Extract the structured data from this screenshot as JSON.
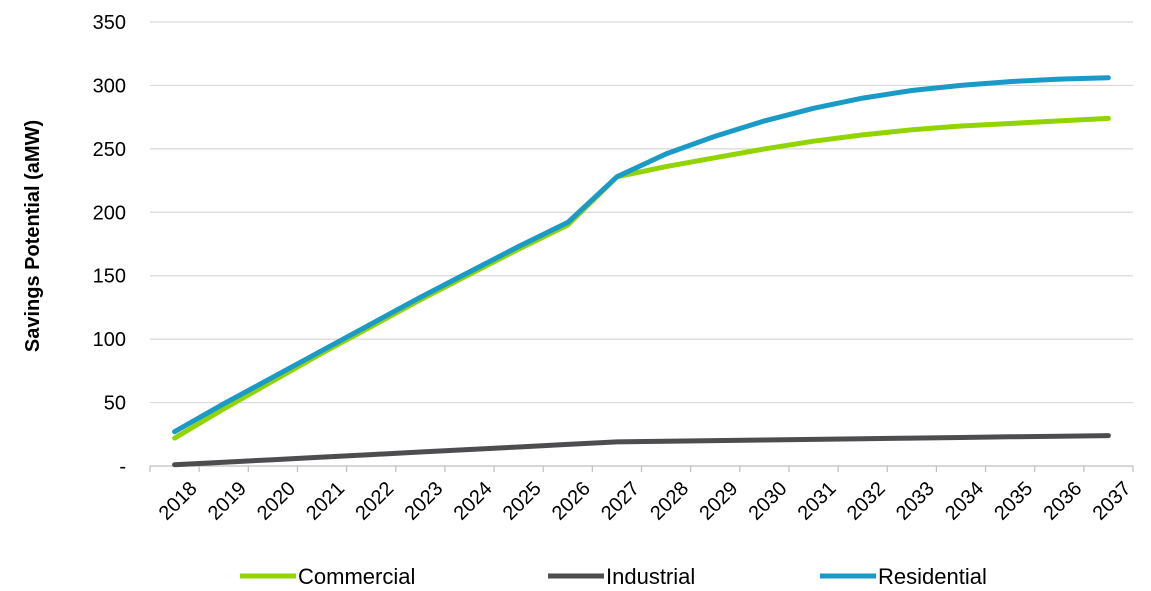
{
  "chart_data": {
    "type": "line",
    "title": "",
    "xlabel": "",
    "ylabel": "Savings Potential (aMW)",
    "x": [
      "2018",
      "2019",
      "2020",
      "2021",
      "2022",
      "2023",
      "2024",
      "2025",
      "2026",
      "2027",
      "2028",
      "2029",
      "2030",
      "2031",
      "2032",
      "2033",
      "2034",
      "2035",
      "2036",
      "2037"
    ],
    "ylim": [
      0,
      350
    ],
    "yticks": [
      0,
      50,
      100,
      150,
      200,
      250,
      300,
      350
    ],
    "ytick_labels": [
      "-",
      "50",
      "100",
      "150",
      "200",
      "250",
      "300",
      "350"
    ],
    "grid": true,
    "legend": "bottom",
    "series": [
      {
        "name": "Commercial",
        "color": "#92d400",
        "values": [
          22,
          45,
          67,
          89,
          110,
          131,
          151,
          171,
          190,
          228,
          236,
          243,
          250,
          256,
          261,
          265,
          268,
          270,
          272,
          274
        ]
      },
      {
        "name": "Industrial",
        "color": "#4d4d4f",
        "values": [
          1,
          3,
          5,
          7,
          9,
          11,
          13,
          15,
          17,
          19,
          19.5,
          20,
          20.5,
          21,
          21.5,
          22,
          22.5,
          23,
          23.5,
          24
        ]
      },
      {
        "name": "Residential",
        "color": "#1a9bc7",
        "values": [
          27,
          49,
          70,
          91,
          112,
          133,
          153,
          173,
          192,
          228,
          246,
          260,
          272,
          282,
          290,
          296,
          300,
          303,
          305,
          306
        ]
      }
    ]
  }
}
